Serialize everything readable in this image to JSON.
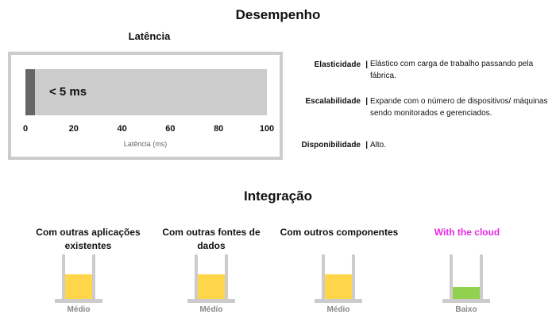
{
  "performance": {
    "title": "Desempenho",
    "latency": {
      "title": "Latência",
      "value_label": "< 5 ms",
      "value_ms": 4,
      "axis_max": 100,
      "ticks": [
        "0",
        "20",
        "40",
        "60",
        "80",
        "100"
      ],
      "axis_label": "Latência (ms)",
      "colors": {
        "fill": "#666666",
        "track": "#cccccc"
      }
    },
    "properties": [
      {
        "label": "Elasticidade",
        "description": "Elástico com carga de trabalho passando pela fábrica."
      },
      {
        "label": "Escalabilidade",
        "description": "Expande com o número de dispositivos/ máquinas sendo monitorados e gerenciados."
      },
      {
        "label": "Disponibilidade",
        "description": "Alto."
      }
    ]
  },
  "integration": {
    "title": "Integração",
    "items": [
      {
        "title": "Com outras aplicações existentes",
        "level": "Médio",
        "fill_fraction": 0.55,
        "fill_color": "#ffd54a"
      },
      {
        "title": "Com outras fontes de dados",
        "level": "Médio",
        "fill_fraction": 0.55,
        "fill_color": "#ffd54a"
      },
      {
        "title": "Com outros componentes",
        "level": "Médio",
        "fill_fraction": 0.55,
        "fill_color": "#ffd54a"
      },
      {
        "title": "With the cloud",
        "level": "Baixo",
        "fill_fraction": 0.27,
        "fill_color": "#92d050",
        "title_color": "#e62ae6"
      }
    ]
  }
}
